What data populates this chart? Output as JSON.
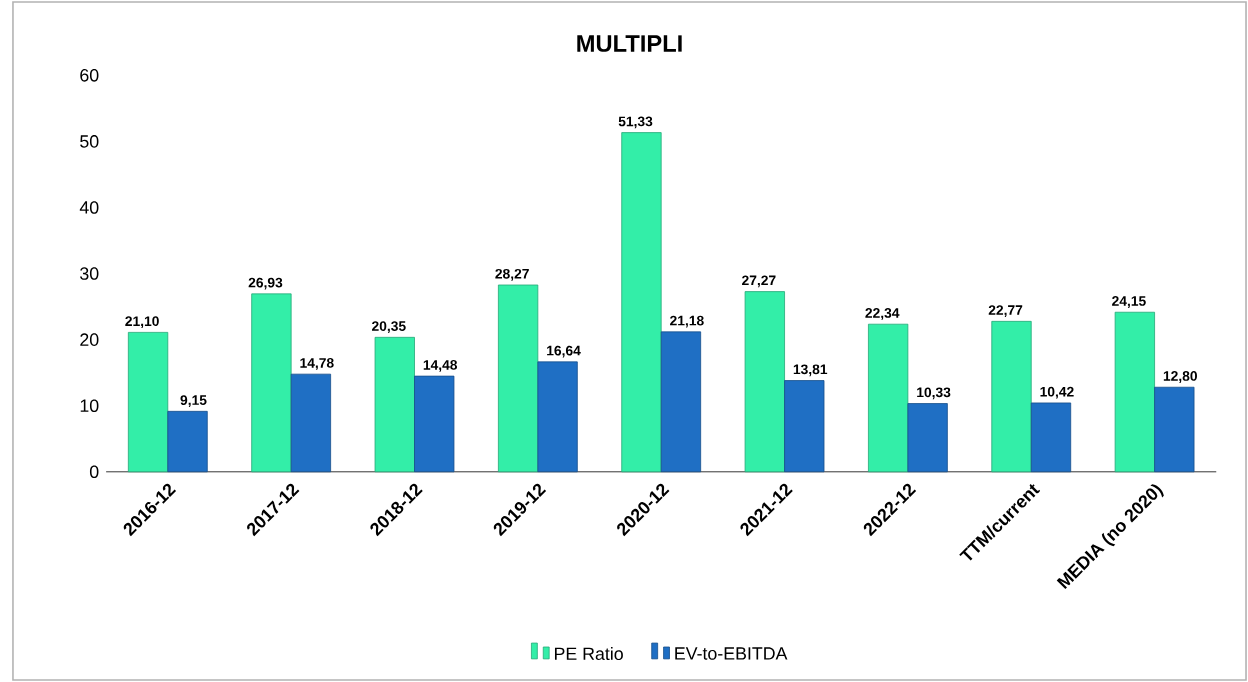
{
  "chart_data": {
    "type": "bar",
    "title": "MULTIPLI",
    "categories": [
      "2016-12",
      "2017-12",
      "2018-12",
      "2019-12",
      "2020-12",
      "2021-12",
      "2022-12",
      "TTM/current",
      "MEDIA (no 2020)"
    ],
    "series": [
      {
        "name": "PE Ratio",
        "color": "#33eea8",
        "values": [
          21.1,
          26.93,
          20.35,
          28.27,
          51.33,
          27.27,
          22.34,
          22.77,
          24.15
        ],
        "value_labels": [
          "21,10",
          "26,93",
          "20,35",
          "28,27",
          "51,33",
          "27,27",
          "22,34",
          "22,77",
          "24,15"
        ]
      },
      {
        "name": "EV-to-EBITDA",
        "color": "#1f6fc4",
        "values": [
          9.15,
          14.78,
          14.48,
          16.64,
          21.18,
          13.81,
          10.33,
          10.42,
          12.8
        ],
        "value_labels": [
          "9,15",
          "14,78",
          "14,48",
          "16,64",
          "21,18",
          "13,81",
          "10,33",
          "10,42",
          "12,80"
        ]
      }
    ],
    "ylim": [
      0,
      60
    ],
    "yticks": [
      0,
      10,
      20,
      30,
      40,
      50,
      60
    ],
    "grid": false,
    "legend": "bottom"
  }
}
